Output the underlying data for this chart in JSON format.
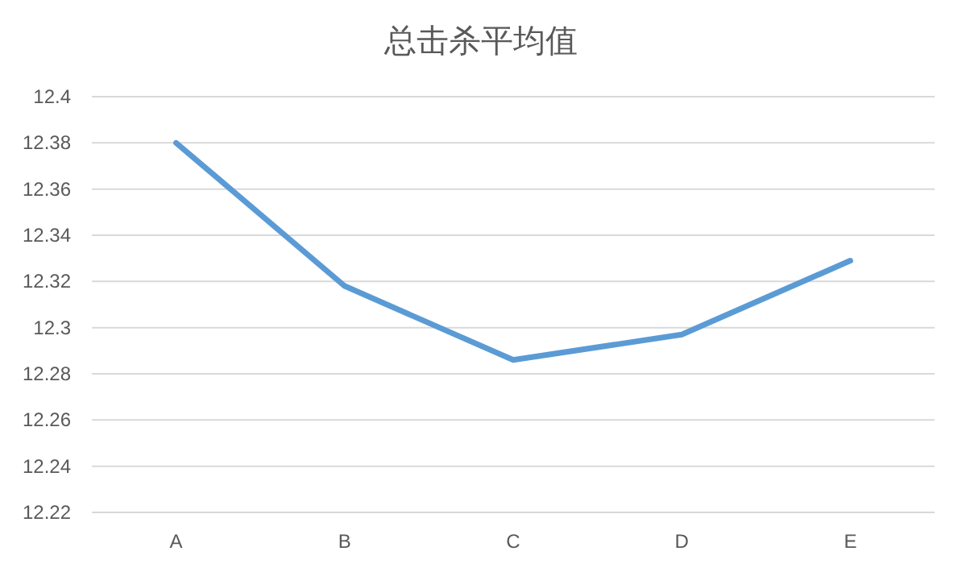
{
  "chart_data": {
    "type": "line",
    "title": "总击杀平均值",
    "categories": [
      "A",
      "B",
      "C",
      "D",
      "E"
    ],
    "series": [
      {
        "color": "#5b9bd5",
        "values": [
          12.38,
          12.318,
          12.286,
          12.297,
          12.329
        ]
      }
    ],
    "ylim": [
      12.22,
      12.4
    ],
    "yticks": [
      12.22,
      12.24,
      12.26,
      12.28,
      12.3,
      12.32,
      12.34,
      12.36,
      12.38,
      12.4
    ],
    "grid": "y"
  }
}
